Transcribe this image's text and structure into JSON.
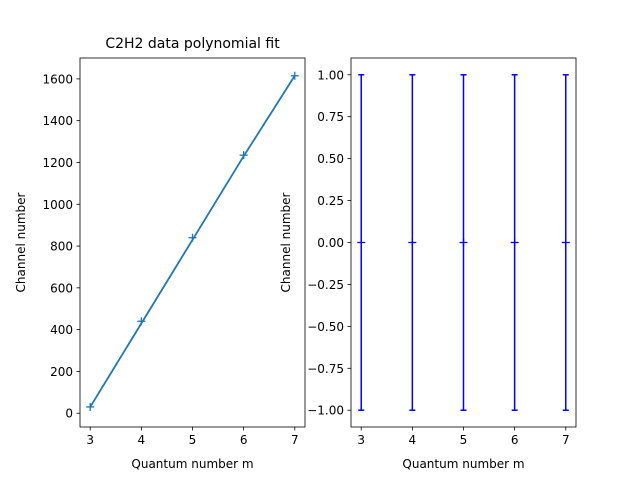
{
  "chart_data": [
    {
      "type": "line",
      "title": "C2H2 data polynomial fit",
      "xlabel": "Quantum number m",
      "ylabel": "Channel number",
      "xlim": [
        2.8,
        7.2
      ],
      "ylim": [
        -66,
        1700
      ],
      "xticks": [
        3,
        4,
        5,
        6,
        7
      ],
      "yticks": [
        0,
        200,
        400,
        600,
        800,
        1000,
        1200,
        1400,
        1600
      ],
      "grid": false,
      "x": [
        3,
        4,
        5,
        6,
        7
      ],
      "series": [
        {
          "role": "fit",
          "style": "line",
          "color": "#1f77b4",
          "values": [
            30,
            430,
            830,
            1230,
            1615
          ]
        },
        {
          "role": "data",
          "style": "plus-markers",
          "color": "#1f77b4",
          "values": [
            30,
            440,
            840,
            1235,
            1615
          ]
        }
      ]
    },
    {
      "type": "scatter",
      "title": "",
      "xlabel": "Quantum number m",
      "ylabel": "Channel number",
      "xlim": [
        2.8,
        7.2
      ],
      "ylim": [
        -1.1,
        1.1
      ],
      "xticks": [
        3,
        4,
        5,
        6,
        7
      ],
      "yticks": [
        -1.0,
        -0.75,
        -0.5,
        -0.25,
        0.0,
        0.25,
        0.5,
        0.75,
        1.0
      ],
      "ytick_labels": [
        "−1.00",
        "−0.75",
        "−0.50",
        "−0.25",
        "0.00",
        "0.25",
        "0.50",
        "0.75",
        "1.00"
      ],
      "grid": false,
      "x": [
        3,
        4,
        5,
        6,
        7
      ],
      "series": [
        {
          "role": "residuals",
          "style": "plus-markers-with-errorbars",
          "color": "#0000ff",
          "values": [
            0,
            0,
            0,
            0,
            0
          ],
          "errors": [
            1,
            1,
            1,
            1,
            1
          ]
        }
      ]
    }
  ]
}
